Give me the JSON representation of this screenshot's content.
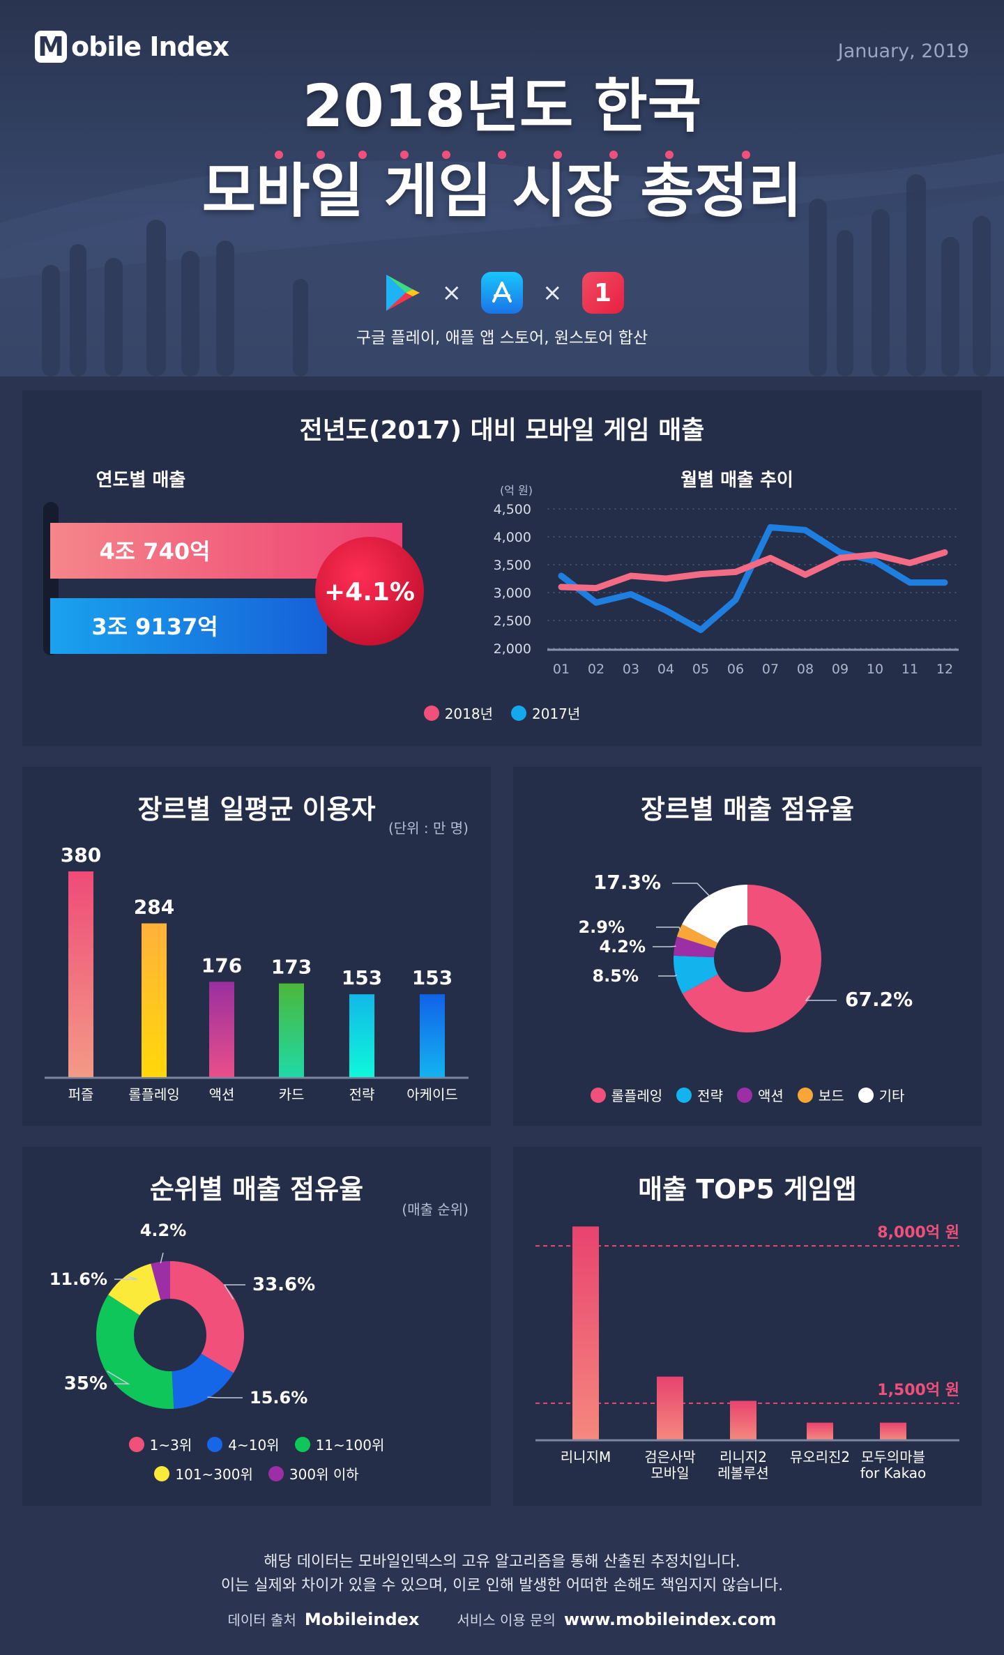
{
  "brand": {
    "logo_letter": "M",
    "logo_text": "obile Index"
  },
  "date": "January, 2019",
  "title": {
    "line1": "2018년도 한국",
    "line2": "모바일 게임 시장 총정리"
  },
  "stores": {
    "icons": [
      "google-play",
      "app-store",
      "one-store"
    ],
    "separator": "×",
    "one_store_glyph": "1",
    "caption": "구글 플레이, 애플 앱 스토어, 원스토어 합산"
  },
  "colors": {
    "accent_pink": "#f0507a",
    "accent_blue": "#1e8fe6",
    "bg": "#2b3552",
    "panel": "#252e48"
  },
  "section1": {
    "title": "전년도(2017) 대비 모바일 게임 매출",
    "left_title": "연도별 매출",
    "right_title": "월별 매출 추이",
    "unit": "(억 원)",
    "legend": [
      "2018년",
      "2017년"
    ]
  },
  "section2": {
    "title": "장르별 일평균 이용자",
    "unit": "(단위 : 만 명)"
  },
  "section3": {
    "title": "장르별 매출 점유율",
    "legend": [
      "롤플레잉",
      "전략",
      "액션",
      "보드",
      "기타"
    ]
  },
  "section4": {
    "title": "순위별 매출 점유율",
    "unit": "(매출 순위)",
    "legend": [
      "1~3위",
      "4~10위",
      "11~100위",
      "101~300위",
      "300위 이하"
    ]
  },
  "section5": {
    "title": "매출 TOP5 게임앱"
  },
  "footer": {
    "line1": "해당 데이터는 모바일인덱스의 고유 알고리즘을 통해 산출된 추정치입니다.",
    "line2": "이는 실제와 차이가 있을 수 있으며, 이로 인해 발생한 어떠한  손해도 책임지지 않습니다.",
    "source_label": "데이터 출처",
    "source_value": "Mobileindex",
    "contact_label": "서비스 이용 문의",
    "contact_value": "www.mobileindex.com"
  },
  "chart_data": [
    {
      "type": "bar",
      "title": "연도별 매출",
      "categories": [
        "2018",
        "2017"
      ],
      "values": [
        40740,
        39137
      ],
      "value_labels": [
        "4조 740억",
        "3조 9137억"
      ],
      "colors": [
        "#f0507a",
        "#1e8fe6"
      ],
      "growth_label": "+4.1%"
    },
    {
      "type": "line",
      "title": "월별 매출 추이",
      "ylabel": "(억 원)",
      "x": [
        "01",
        "02",
        "03",
        "04",
        "05",
        "06",
        "07",
        "08",
        "09",
        "10",
        "11",
        "12"
      ],
      "yticks": [
        "4,500",
        "4,000",
        "3,500",
        "3,000",
        "2,500",
        "2,000"
      ],
      "ylim": [
        2000,
        4500
      ],
      "grid": true,
      "series": [
        {
          "name": "2018년",
          "color": "#f36b85",
          "values": [
            3100,
            3080,
            3300,
            3250,
            3330,
            3370,
            3620,
            3320,
            3620,
            3680,
            3530,
            3720
          ]
        },
        {
          "name": "2017년",
          "color": "#1e7fe0",
          "values": [
            3300,
            2820,
            2970,
            2680,
            2330,
            2870,
            4170,
            4120,
            3720,
            3560,
            3180,
            3180
          ]
        }
      ]
    },
    {
      "type": "bar",
      "title": "장르별 일평균 이용자",
      "ylabel": "(단위 : 만 명)",
      "categories": [
        "퍼즐",
        "롤플레잉",
        "액션",
        "카드",
        "전략",
        "아케이드"
      ],
      "values": [
        380,
        284,
        176,
        173,
        153,
        153
      ],
      "colors": [
        [
          "#ef4b78",
          "#f39a86"
        ],
        [
          "#ffb13a",
          "#ffd80a"
        ],
        [
          "#9a2fa0",
          "#e94f8a"
        ],
        [
          "#4cb73a",
          "#1fd9a6"
        ],
        [
          "#12b8e8",
          "#0ff7da"
        ],
        [
          "#1162e9",
          "#14b3f0"
        ]
      ]
    },
    {
      "type": "pie",
      "title": "장르별 매출 점유율",
      "labels": [
        "롤플레잉",
        "전략",
        "액션",
        "보드",
        "기타"
      ],
      "values": [
        67.2,
        8.5,
        4.2,
        2.9,
        17.3
      ],
      "value_labels": [
        "67.2%",
        "8.5%",
        "4.2%",
        "2.9%",
        "17.3%"
      ],
      "colors": [
        "#f0507a",
        "#13b3ee",
        "#9c2ea6",
        "#f7a637",
        "#ffffff"
      ]
    },
    {
      "type": "pie",
      "title": "순위별 매출 점유율",
      "labels": [
        "1~3위",
        "4~10위",
        "11~100위",
        "101~300위",
        "300위 이하"
      ],
      "values": [
        33.6,
        15.6,
        35,
        11.6,
        4.2
      ],
      "value_labels": [
        "33.6%",
        "15.6%",
        "35%",
        "11.6%",
        "4.2%"
      ],
      "colors": [
        "#f0507a",
        "#1666e8",
        "#0fc65a",
        "#fcea3a",
        "#9c2ea6"
      ]
    },
    {
      "type": "bar",
      "title": "매출 TOP5 게임앱",
      "categories": [
        "리니지M",
        "검은사막\n모바일",
        "리니지2\n레볼루션",
        "뮤오리진2",
        "모두의마블\nfor Kakao"
      ],
      "values": [
        8800,
        2600,
        1600,
        700,
        700
      ],
      "reference_lines": [
        {
          "value": 8000,
          "label": "8,000억 원"
        },
        {
          "value": 1500,
          "label": "1,500억 원"
        }
      ],
      "ylim": [
        0,
        9500
      ]
    }
  ]
}
